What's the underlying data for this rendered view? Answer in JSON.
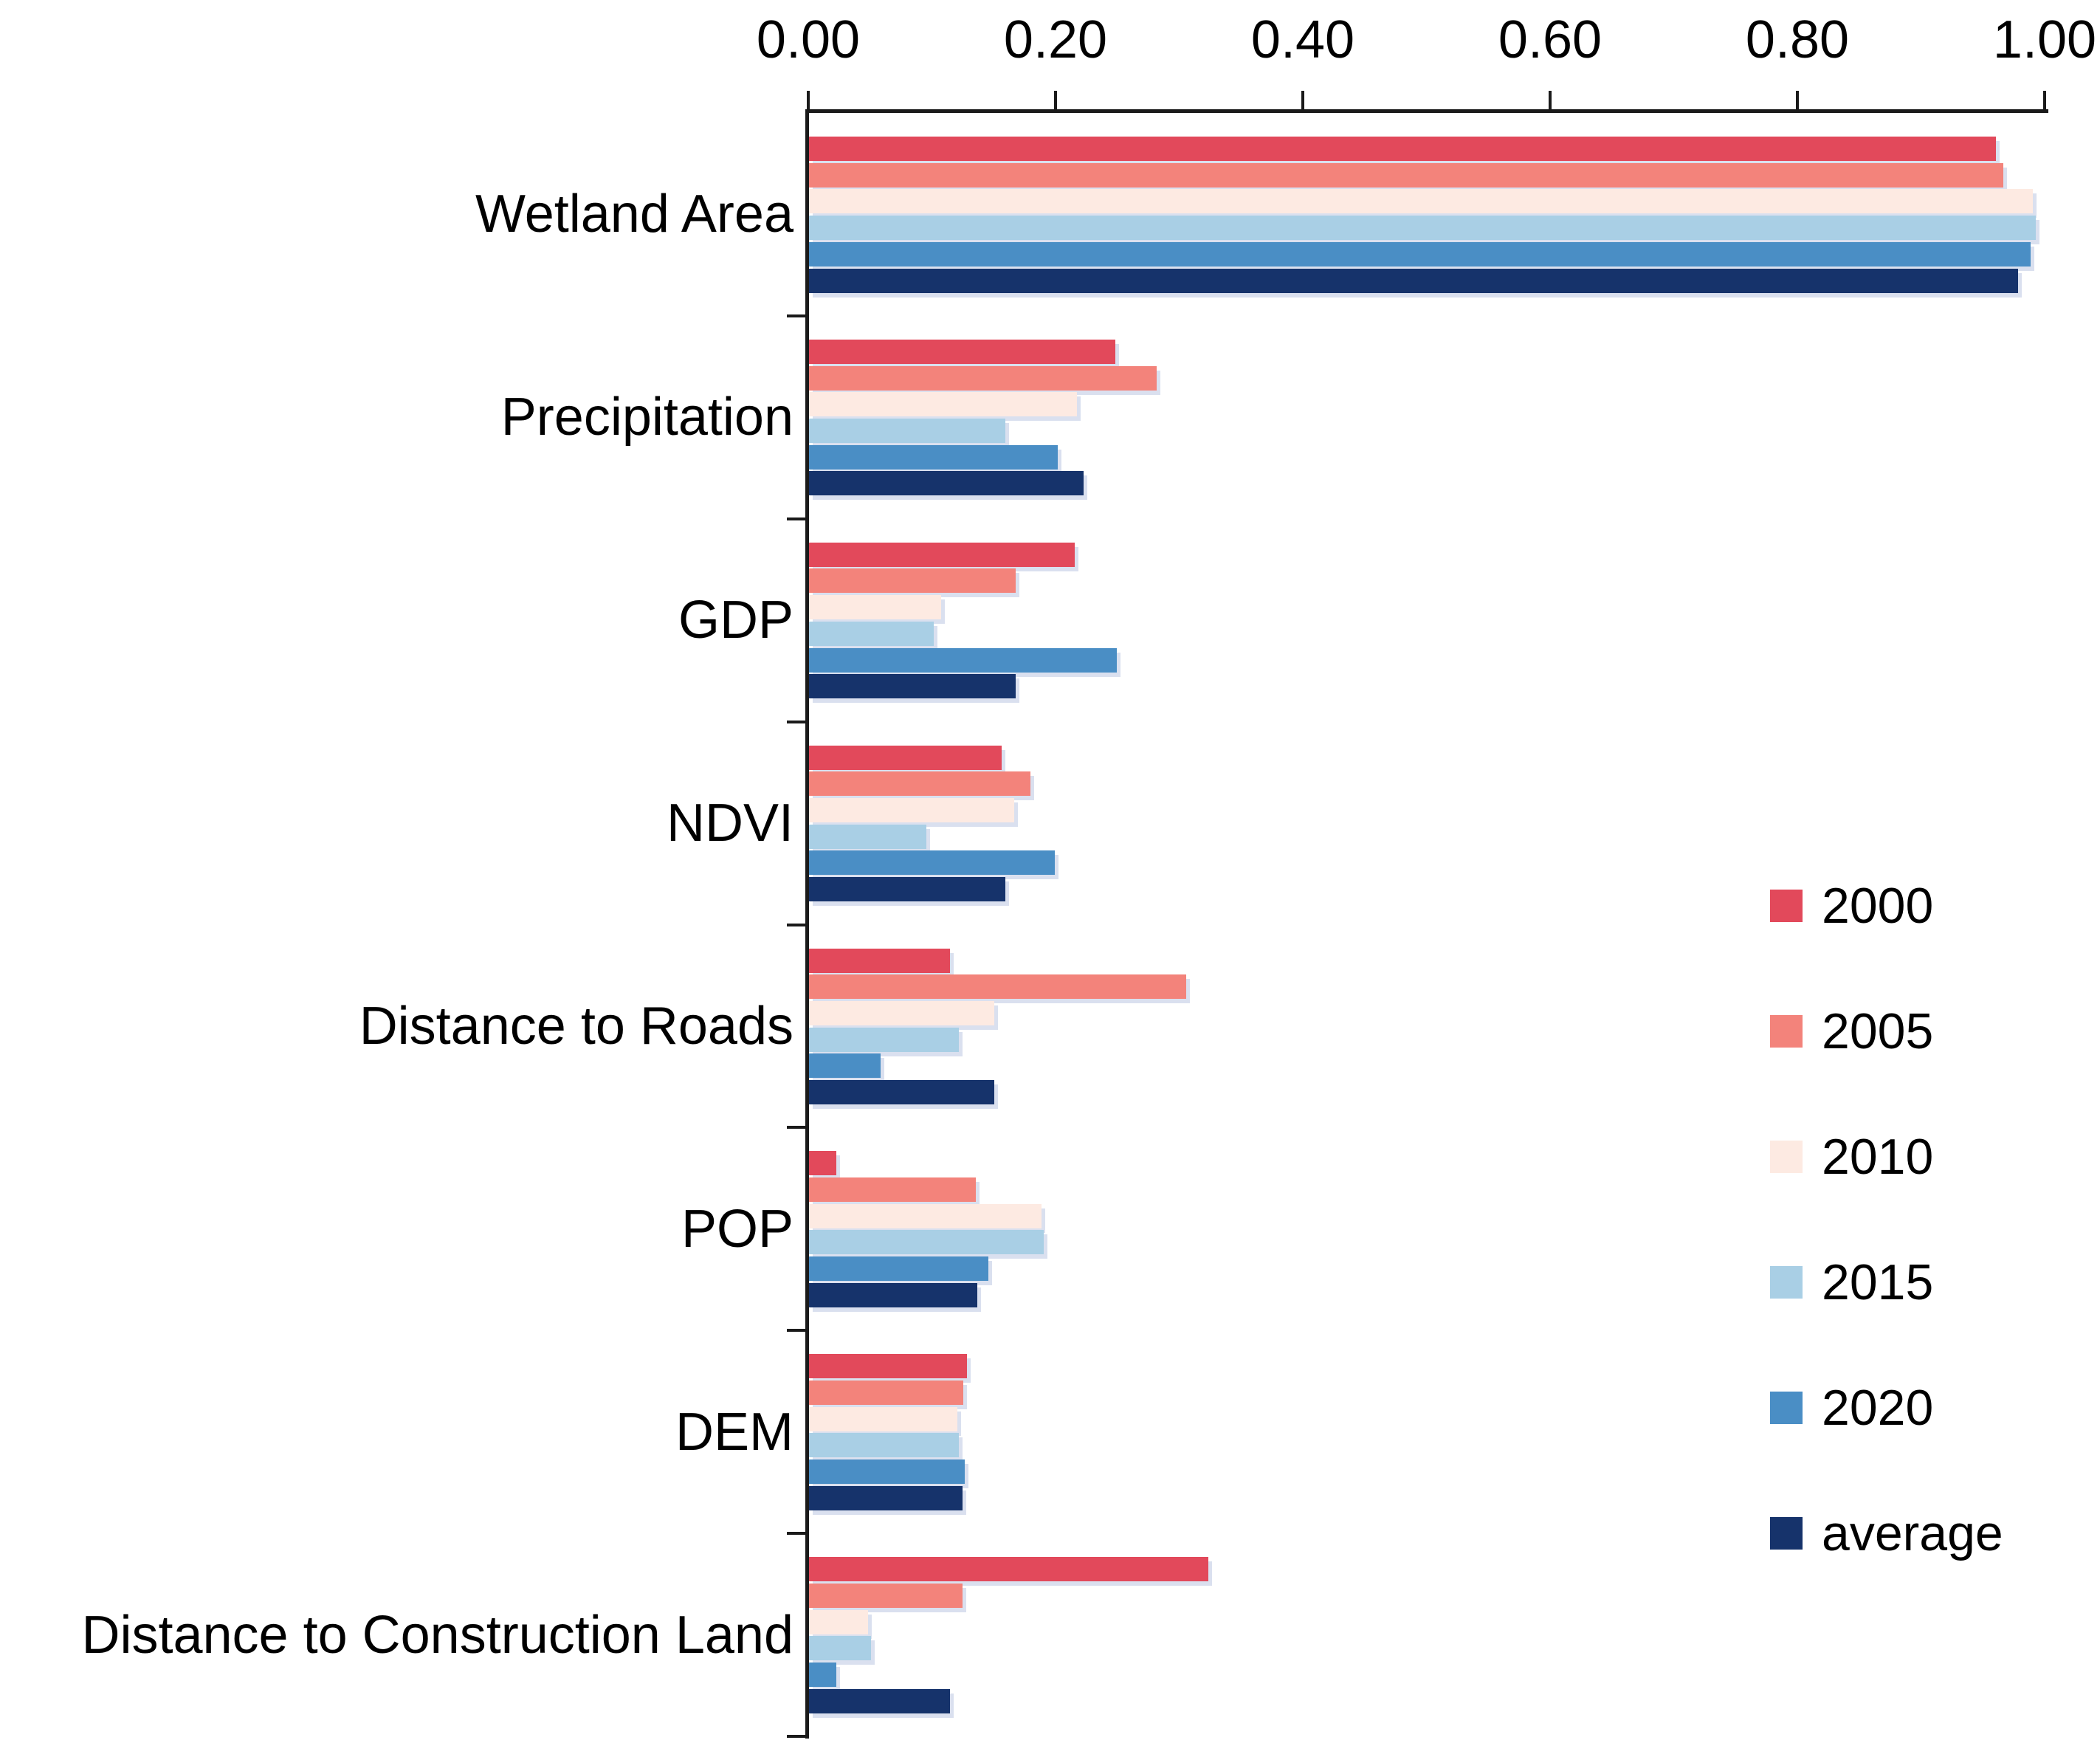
{
  "figure": {
    "background_color": "#ffffff",
    "text_color": "#000000",
    "axis_color": "#1a1a1a"
  },
  "chart_data": {
    "type": "bar",
    "orientation": "horizontal",
    "title": "",
    "xlabel": "",
    "ylabel": "",
    "grid": false,
    "xlim": [
      0.0,
      1.0
    ],
    "x_axis": {
      "position": "top",
      "tick_values": [
        0.0,
        0.2,
        0.4,
        0.6,
        0.8,
        1.0
      ],
      "tick_labels": [
        "0.00",
        "0.20",
        "0.40",
        "0.60",
        "0.80",
        "1.00"
      ]
    },
    "categories": [
      "Wetland Area",
      "Precipitation",
      "GDP",
      "NDVI",
      "Distance to Roads",
      "POP",
      "DEM",
      "Distance to Construction Land"
    ],
    "series": [
      {
        "name": "2000",
        "color": "#e2495b",
        "values": [
          0.96,
          0.248,
          0.215,
          0.156,
          0.114,
          0.022,
          0.128,
          0.323
        ]
      },
      {
        "name": "2005",
        "color": "#f3837b",
        "values": [
          0.966,
          0.281,
          0.167,
          0.179,
          0.305,
          0.135,
          0.125,
          0.124
        ]
      },
      {
        "name": "2010",
        "color": "#fdeae2",
        "values": [
          0.99,
          0.217,
          0.107,
          0.166,
          0.15,
          0.188,
          0.12,
          0.048
        ]
      },
      {
        "name": "2015",
        "color": "#a9cfe5",
        "values": [
          0.992,
          0.159,
          0.101,
          0.095,
          0.121,
          0.19,
          0.121,
          0.05
        ]
      },
      {
        "name": "2020",
        "color": "#4a8ec5",
        "values": [
          0.988,
          0.201,
          0.249,
          0.199,
          0.058,
          0.145,
          0.126,
          0.022
        ]
      },
      {
        "name": "average",
        "color": "#16336b",
        "values": [
          0.978,
          0.222,
          0.167,
          0.159,
          0.15,
          0.136,
          0.124,
          0.114
        ]
      }
    ],
    "legend": {
      "position": "right-middle",
      "entries": [
        "2000",
        "2005",
        "2010",
        "2015",
        "2020",
        "average"
      ]
    }
  }
}
